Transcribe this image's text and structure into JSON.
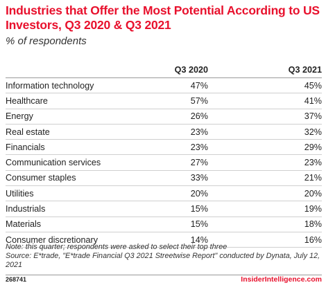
{
  "chart_data": {
    "type": "table",
    "title": "Industries that Offer the Most Potential According to US Investors, Q3 2020 & Q3 2021",
    "subtitle": "% of respondents",
    "columns": [
      "Q3 2020",
      "Q3 2021"
    ],
    "rows": [
      {
        "category": "Information technology",
        "q3_2020": "47%",
        "q3_2021": "45%"
      },
      {
        "category": "Healthcare",
        "q3_2020": "57%",
        "q3_2021": "41%"
      },
      {
        "category": "Energy",
        "q3_2020": "26%",
        "q3_2021": "37%"
      },
      {
        "category": "Real estate",
        "q3_2020": "23%",
        "q3_2021": "32%"
      },
      {
        "category": "Financials",
        "q3_2020": "23%",
        "q3_2021": "29%"
      },
      {
        "category": "Communication services",
        "q3_2020": "27%",
        "q3_2021": "23%"
      },
      {
        "category": "Consumer staples",
        "q3_2020": "33%",
        "q3_2021": "21%"
      },
      {
        "category": "Utilities",
        "q3_2020": "20%",
        "q3_2021": "20%"
      },
      {
        "category": "Industrials",
        "q3_2020": "15%",
        "q3_2021": "19%"
      },
      {
        "category": "Materials",
        "q3_2020": "15%",
        "q3_2021": "18%"
      },
      {
        "category": "Consumer discretionary",
        "q3_2020": "14%",
        "q3_2021": "16%"
      }
    ],
    "note": "Note: this quarter; respondents were asked to select their top three",
    "source": "Source: E*trade, \"E*trade Financial Q3 2021 Streetwise Report\" conducted by Dynata, July 12, 2021"
  },
  "footer": {
    "chart_id": "268741",
    "brand": "InsiderIntelligence.com"
  },
  "colors": {
    "accent": "#e8112d"
  }
}
